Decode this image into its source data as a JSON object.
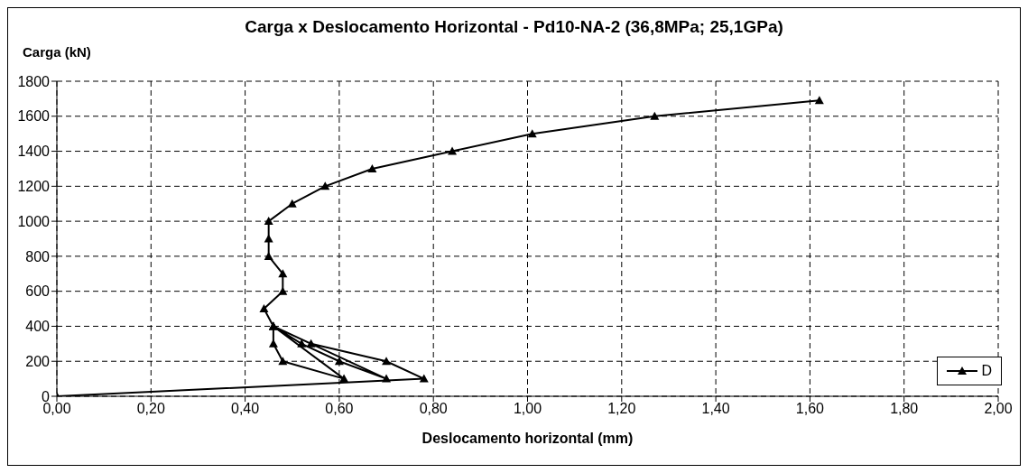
{
  "chart_data": {
    "type": "line",
    "title": "Carga x Deslocamento Horizontal - Pd10-NA-2  (36,8MPa; 25,1GPa)",
    "xlabel": "Deslocamento horizontal (mm)",
    "ylabel": "Carga  (kN)",
    "series": [
      {
        "name": "D",
        "color": "#000000",
        "x": [
          0,
          0.78,
          0.7,
          0.54,
          0.46,
          0.52,
          0.6,
          0.7,
          0.46,
          0.61,
          0.48,
          0.46,
          0.46,
          0.44,
          0.48,
          0.48,
          0.45,
          0.45,
          0.45,
          0.5,
          0.57,
          0.67,
          0.84,
          1.01,
          1.27,
          1.62
        ],
        "values": [
          0,
          100,
          200,
          300,
          400,
          300,
          200,
          100,
          400,
          100,
          200,
          300,
          400,
          500,
          600,
          700,
          800,
          900,
          1000,
          1100,
          1200,
          1300,
          1400,
          1500,
          1600,
          1690
        ]
      }
    ],
    "xlim": [
      0,
      2
    ],
    "xticks": [
      {
        "value": 0,
        "label": "0,00"
      },
      {
        "value": 0.2,
        "label": "0,20"
      },
      {
        "value": 0.4,
        "label": "0,40"
      },
      {
        "value": 0.6,
        "label": "0,60"
      },
      {
        "value": 0.8,
        "label": "0,80"
      },
      {
        "value": 1,
        "label": "1,00"
      },
      {
        "value": 1.2,
        "label": "1,20"
      },
      {
        "value": 1.4,
        "label": "1,40"
      },
      {
        "value": 1.6,
        "label": "1,60"
      },
      {
        "value": 1.8,
        "label": "1,80"
      },
      {
        "value": 2,
        "label": "2,00"
      }
    ],
    "ylim": [
      0,
      1800
    ],
    "yticks": [
      0,
      200,
      400,
      600,
      800,
      1000,
      1200,
      1400,
      1600,
      1800
    ],
    "grid": true,
    "legend": "bottom right",
    "marker": "triangle",
    "line_style": "solid"
  }
}
